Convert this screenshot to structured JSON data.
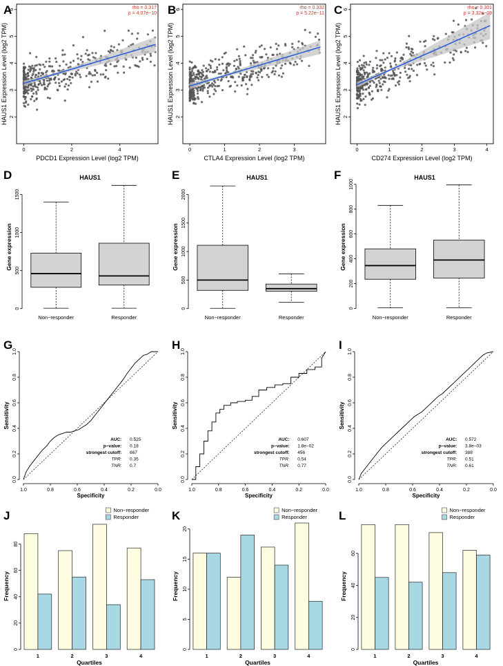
{
  "colors": {
    "point": "#555555",
    "regression_line": "#2b5fd9",
    "confidence_band": "#c6c6c6",
    "stat_text": "#c0392b",
    "box_fill": "#d3d3d3",
    "non_responder": "#fffde1",
    "responder": "#a9d8e5",
    "axis": "#000000"
  },
  "panels": {
    "A": "A",
    "B": "B",
    "C": "C",
    "D": "D",
    "E": "E",
    "F": "F",
    "G": "G",
    "H": "H",
    "I": "I",
    "J": "J",
    "K": "K",
    "L": "L"
  },
  "chart_data": [
    {
      "id": "A",
      "type": "scatter",
      "xlabel": "PDCD1 Expression Level (log2 TPM)",
      "ylabel": "HAUS1 Expression Level (log2 TPM)",
      "xlim": [
        -0.3,
        5.6
      ],
      "ylim": [
        1.0,
        6.2
      ],
      "xticks": [
        0,
        2,
        4
      ],
      "yticks": [
        2,
        3,
        4,
        5,
        6
      ],
      "stat_rho": "rho = 0.317",
      "stat_p": "p = 4.07e−10",
      "fit": [
        [
          0.0,
          3.25
        ],
        [
          5.5,
          4.7
        ]
      ],
      "band_halfwidth": [
        0.1,
        0.04,
        0.28
      ],
      "cloud": {
        "n": 420,
        "xmax": 5.5,
        "y0": 3.25,
        "slope": 0.26,
        "sd": 0.55,
        "seed": 7
      }
    },
    {
      "id": "B",
      "type": "scatter",
      "xlabel": "CTLA4 Expression Level (log2 TPM)",
      "ylabel": "HAUS1 Expression Level (log2 TPM)",
      "xlim": [
        -0.2,
        3.9
      ],
      "ylim": [
        1.0,
        6.2
      ],
      "xticks": [
        0,
        1,
        2,
        3
      ],
      "yticks": [
        2,
        3,
        4,
        5,
        6
      ],
      "stat_rho": "rho = 0.332",
      "stat_p": "p = 5.22e−11",
      "fit": [
        [
          0.0,
          3.15
        ],
        [
          3.75,
          4.6
        ]
      ],
      "band_halfwidth": [
        0.12,
        0.04,
        0.26
      ],
      "cloud": {
        "n": 440,
        "xmax": 3.75,
        "y0": 3.15,
        "slope": 0.39,
        "sd": 0.55,
        "seed": 19
      }
    },
    {
      "id": "C",
      "type": "scatter",
      "xlabel": "CD274 Expression Level (log2 TPM)",
      "ylabel": "HAUS1 Expression Level (log2 TPM)",
      "xlim": [
        -0.2,
        4.2
      ],
      "ylim": [
        1.0,
        6.2
      ],
      "xticks": [
        0,
        1,
        2,
        3,
        4
      ],
      "yticks": [
        2,
        3,
        4,
        5,
        6
      ],
      "stat_rho": "rho = 0.301",
      "stat_p": "p = 3.32e−09",
      "fit": [
        [
          0.0,
          3.2
        ],
        [
          4.1,
          5.4
        ]
      ],
      "band_halfwidth": [
        0.1,
        0.04,
        0.5
      ],
      "cloud": {
        "n": 420,
        "xmax": 4.0,
        "y0": 3.2,
        "slope": 0.52,
        "sd": 0.55,
        "seed": 31
      }
    },
    {
      "id": "D",
      "type": "box",
      "title": "HAUS1",
      "ylabel": "Gene expression",
      "categories": [
        "Non−responder",
        "Responder"
      ],
      "ylim": [
        -30,
        1650
      ],
      "yticks": [
        0,
        500,
        1000,
        1500
      ],
      "boxes": [
        {
          "min": 5,
          "q1": 280,
          "median": 460,
          "q3": 730,
          "max": 1400
        },
        {
          "min": 5,
          "q1": 310,
          "median": 430,
          "q3": 860,
          "max": 1620
        }
      ]
    },
    {
      "id": "E",
      "type": "box",
      "title": "HAUS1",
      "ylabel": "Gene expression",
      "categories": [
        "Non−responder",
        "Responder"
      ],
      "ylim": [
        -40,
        2200
      ],
      "yticks": [
        0,
        500,
        1000,
        1500,
        2000
      ],
      "boxes": [
        {
          "min": 5,
          "q1": 320,
          "median": 500,
          "q3": 1110,
          "max": 2150
        },
        {
          "min": 110,
          "q1": 305,
          "median": 350,
          "q3": 430,
          "max": 610
        }
      ]
    },
    {
      "id": "F",
      "type": "box",
      "title": "HAUS1",
      "ylabel": "Gene expression",
      "categories": [
        "Non−responder",
        "Responder"
      ],
      "ylim": [
        -20,
        1010
      ],
      "yticks": [
        0,
        200,
        400,
        600,
        800,
        1000
      ],
      "boxes": [
        {
          "min": 5,
          "q1": 235,
          "median": 345,
          "q3": 480,
          "max": 830
        },
        {
          "min": 5,
          "q1": 245,
          "median": 390,
          "q3": 550,
          "max": 995
        }
      ]
    },
    {
      "id": "G",
      "type": "line",
      "xlabel": "Specificity",
      "ylabel": "Sensitivity",
      "xlim": [
        1.0,
        0.0
      ],
      "ylim": [
        0.0,
        1.0
      ],
      "xticks": [
        1.0,
        0.8,
        0.6,
        0.4,
        0.2,
        0.0
      ],
      "yticks": [
        0.0,
        0.2,
        0.4,
        0.6,
        0.8,
        1.0
      ],
      "curve_specificity": [
        1.0,
        0.98,
        0.95,
        0.92,
        0.89,
        0.86,
        0.83,
        0.8,
        0.77,
        0.74,
        0.71,
        0.68,
        0.65,
        0.62,
        0.59,
        0.56,
        0.53,
        0.5,
        0.47,
        0.44,
        0.41,
        0.38,
        0.35,
        0.32,
        0.29,
        0.26,
        0.23,
        0.2,
        0.17,
        0.14,
        0.11,
        0.08,
        0.05,
        0.0
      ],
      "curve_sensitivity": [
        0.0,
        0.06,
        0.11,
        0.15,
        0.19,
        0.23,
        0.26,
        0.3,
        0.33,
        0.35,
        0.36,
        0.37,
        0.37,
        0.38,
        0.39,
        0.41,
        0.43,
        0.46,
        0.5,
        0.54,
        0.58,
        0.62,
        0.66,
        0.7,
        0.74,
        0.78,
        0.83,
        0.87,
        0.91,
        0.94,
        0.97,
        0.98,
        1.0,
        1.0
      ],
      "stats": [
        {
          "label": "AUC:",
          "value": "0.525",
          "italic": false
        },
        {
          "label": "p−value:",
          "value": "0.18",
          "italic": false
        },
        {
          "label": "strongest cutoff:",
          "value": "667",
          "italic": false
        },
        {
          "label": "TPR:",
          "value": "0.35",
          "italic": true
        },
        {
          "label": "TNR:",
          "value": "0.7",
          "italic": true
        }
      ]
    },
    {
      "id": "H",
      "type": "line",
      "xlabel": "Specificity",
      "ylabel": "Sensitivity",
      "xlim": [
        1.0,
        0.0
      ],
      "ylim": [
        0.0,
        1.0
      ],
      "xticks": [
        1.0,
        0.8,
        0.6,
        0.4,
        0.2,
        0.0
      ],
      "yticks": [
        0.0,
        0.2,
        0.4,
        0.6,
        0.8,
        1.0
      ],
      "curve_specificity": [
        1.0,
        0.97,
        0.97,
        0.94,
        0.94,
        0.91,
        0.91,
        0.88,
        0.88,
        0.85,
        0.85,
        0.82,
        0.82,
        0.79,
        0.79,
        0.76,
        0.76,
        0.71,
        0.71,
        0.66,
        0.66,
        0.6,
        0.6,
        0.55,
        0.55,
        0.5,
        0.5,
        0.44,
        0.44,
        0.38,
        0.38,
        0.32,
        0.32,
        0.26,
        0.26,
        0.2,
        0.2,
        0.14,
        0.14,
        0.08,
        0.08,
        0.03,
        0.03,
        0.0
      ],
      "curve_sensitivity": [
        0.0,
        0.0,
        0.1,
        0.1,
        0.2,
        0.2,
        0.3,
        0.3,
        0.38,
        0.38,
        0.45,
        0.45,
        0.52,
        0.52,
        0.55,
        0.55,
        0.58,
        0.58,
        0.6,
        0.6,
        0.61,
        0.61,
        0.62,
        0.62,
        0.65,
        0.65,
        0.7,
        0.7,
        0.72,
        0.72,
        0.74,
        0.74,
        0.75,
        0.75,
        0.8,
        0.8,
        0.83,
        0.83,
        0.86,
        0.86,
        0.88,
        0.88,
        0.95,
        1.0
      ],
      "stats": [
        {
          "label": "AUC:",
          "value": "0.607",
          "italic": false
        },
        {
          "label": "p−value:",
          "value": "1.8e−02",
          "italic": false
        },
        {
          "label": "strongest cutoff:",
          "value": "456",
          "italic": false
        },
        {
          "label": "TPR:",
          "value": "0.54",
          "italic": true
        },
        {
          "label": "TNR:",
          "value": "0.77",
          "italic": true
        }
      ]
    },
    {
      "id": "I",
      "type": "line",
      "xlabel": "Specificity",
      "ylabel": "Sensitivity",
      "xlim": [
        1.0,
        0.0
      ],
      "ylim": [
        0.0,
        1.0
      ],
      "xticks": [
        1.0,
        0.8,
        0.6,
        0.4,
        0.2,
        0.0
      ],
      "yticks": [
        0.0,
        0.2,
        0.4,
        0.6,
        0.8,
        1.0
      ],
      "curve_specificity": [
        1.0,
        0.98,
        0.95,
        0.92,
        0.89,
        0.86,
        0.83,
        0.8,
        0.77,
        0.74,
        0.71,
        0.68,
        0.65,
        0.62,
        0.59,
        0.56,
        0.53,
        0.5,
        0.47,
        0.44,
        0.41,
        0.38,
        0.35,
        0.32,
        0.29,
        0.26,
        0.23,
        0.2,
        0.17,
        0.14,
        0.11,
        0.08,
        0.05,
        0.0
      ],
      "curve_sensitivity": [
        0.0,
        0.05,
        0.09,
        0.13,
        0.17,
        0.21,
        0.25,
        0.28,
        0.31,
        0.34,
        0.37,
        0.4,
        0.43,
        0.46,
        0.49,
        0.51,
        0.53,
        0.56,
        0.59,
        0.62,
        0.65,
        0.67,
        0.7,
        0.73,
        0.76,
        0.79,
        0.82,
        0.85,
        0.88,
        0.91,
        0.94,
        0.97,
        0.99,
        1.0
      ],
      "stats": [
        {
          "label": "AUC:",
          "value": "0.572",
          "italic": false
        },
        {
          "label": "p−value:",
          "value": "3.8e−03",
          "italic": false
        },
        {
          "label": "strongest cutoff:",
          "value": "388",
          "italic": false
        },
        {
          "label": "TPR:",
          "value": "0.51",
          "italic": true
        },
        {
          "label": "TNR:",
          "value": "0.61",
          "italic": true
        }
      ]
    },
    {
      "id": "J",
      "type": "bar",
      "xlabel": "Quartiles",
      "ylabel": "Frequency",
      "categories": [
        "1",
        "2",
        "3",
        "4"
      ],
      "ylim": [
        0,
        96
      ],
      "yticks": [
        0,
        20,
        40,
        60,
        80
      ],
      "legend": [
        "Non−responder",
        "Responder"
      ],
      "series": [
        {
          "name": "Non−responder",
          "values": [
            88,
            75,
            95,
            77
          ]
        },
        {
          "name": "Responder",
          "values": [
            42,
            55,
            34,
            53
          ]
        }
      ]
    },
    {
      "id": "K",
      "type": "bar",
      "xlabel": "Quartiles",
      "ylabel": "Frequency",
      "categories": [
        "1",
        "2",
        "3",
        "4"
      ],
      "ylim": [
        0,
        21
      ],
      "yticks": [
        0,
        5,
        10,
        15,
        20
      ],
      "legend": [
        "Non−responder",
        "Responder"
      ],
      "series": [
        {
          "name": "Non−responder",
          "values": [
            16,
            12,
            17,
            21
          ]
        },
        {
          "name": "Responder",
          "values": [
            16,
            19,
            14,
            8
          ]
        }
      ]
    },
    {
      "id": "L",
      "type": "bar",
      "xlabel": "Quartiles",
      "ylabel": "Frequency",
      "categories": [
        "1",
        "2",
        "3",
        "4"
      ],
      "ylim": [
        0,
        79
      ],
      "yticks": [
        0,
        20,
        40,
        60
      ],
      "legend": [
        "Non−responder",
        "Responder"
      ],
      "series": [
        {
          "name": "Non−responder",
          "values": [
            78,
            78,
            73,
            62
          ]
        },
        {
          "name": "Responder",
          "values": [
            45,
            42,
            48,
            59
          ]
        }
      ]
    }
  ]
}
